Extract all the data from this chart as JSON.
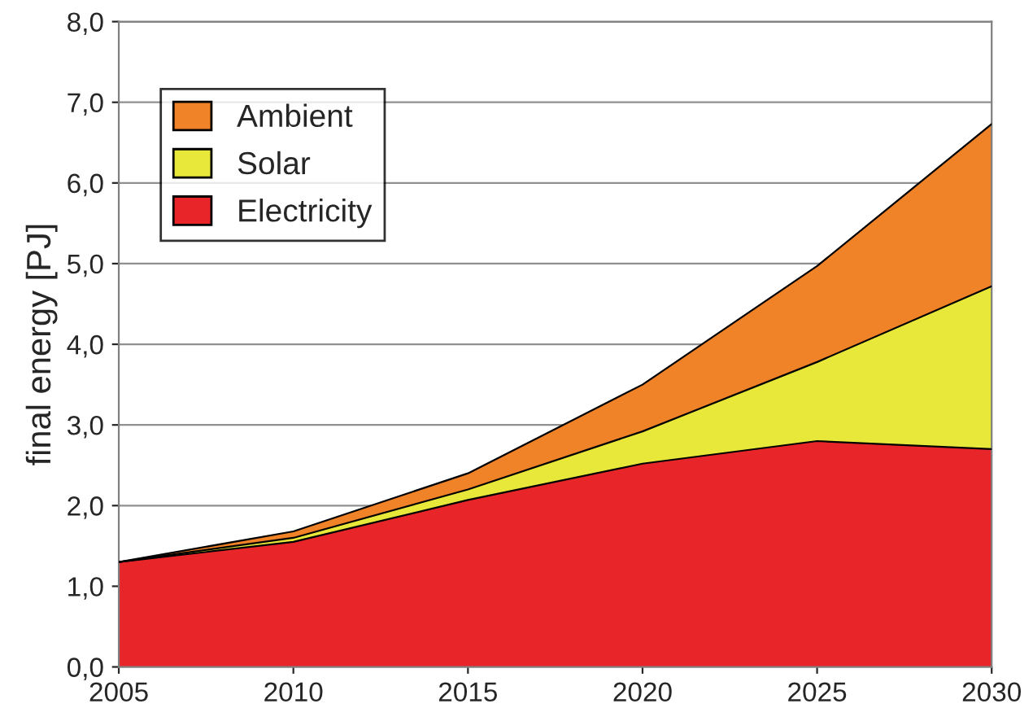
{
  "chart_data": {
    "type": "area",
    "stacked": true,
    "ylabel": "final energy [PJ]",
    "x": [
      2005,
      2010,
      2015,
      2020,
      2025,
      2030
    ],
    "series": [
      {
        "name": "Electricity",
        "color": "#e8262a",
        "values": [
          1.3,
          1.55,
          2.07,
          2.52,
          2.8,
          2.7
        ]
      },
      {
        "name": "Solar",
        "color": "#e8e83a",
        "values": [
          0,
          0.05,
          0.13,
          0.4,
          0.98,
          2.02
        ]
      },
      {
        "name": "Ambient",
        "color": "#f08228",
        "values": [
          0,
          0.08,
          0.2,
          0.58,
          1.19,
          2.01
        ]
      }
    ],
    "xlim": [
      2005,
      2030
    ],
    "xticks": [
      2005,
      2010,
      2015,
      2020,
      2025,
      2030
    ],
    "ylim": [
      0,
      8
    ],
    "yticks": [
      {
        "value": 0,
        "label": "0,0"
      },
      {
        "value": 1,
        "label": "1,0"
      },
      {
        "value": 2,
        "label": "2,0"
      },
      {
        "value": 3,
        "label": "3,0"
      },
      {
        "value": 4,
        "label": "4,0"
      },
      {
        "value": 5,
        "label": "5,0"
      },
      {
        "value": 6,
        "label": "6,0"
      },
      {
        "value": 7,
        "label": "7,0"
      },
      {
        "value": 8,
        "label": "8,0"
      }
    ],
    "grid": "y",
    "legend": "top left"
  }
}
